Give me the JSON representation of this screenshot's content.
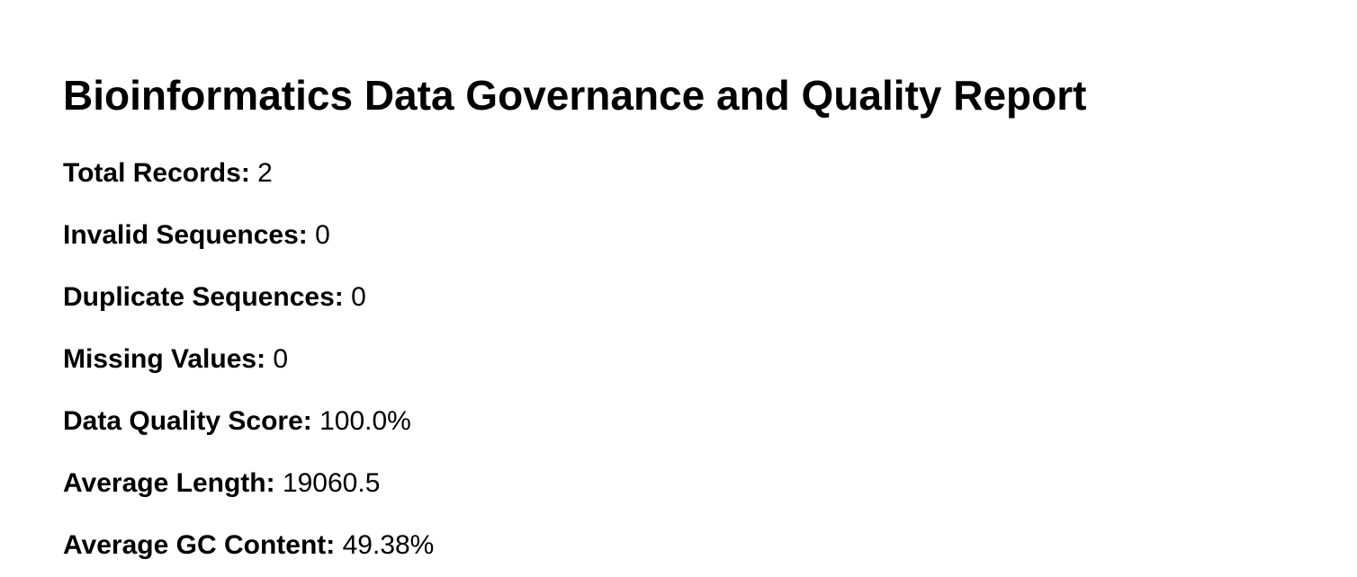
{
  "report": {
    "title": "Bioinformatics Data Governance and Quality Report",
    "metrics": [
      {
        "label": "Total Records:",
        "value": "2"
      },
      {
        "label": "Invalid Sequences:",
        "value": "0"
      },
      {
        "label": "Duplicate Sequences:",
        "value": "0"
      },
      {
        "label": "Missing Values:",
        "value": "0"
      },
      {
        "label": "Data Quality Score:",
        "value": "100.0%"
      },
      {
        "label": "Average Length:",
        "value": "19060.5"
      },
      {
        "label": "Average GC Content:",
        "value": "49.38%"
      }
    ]
  }
}
